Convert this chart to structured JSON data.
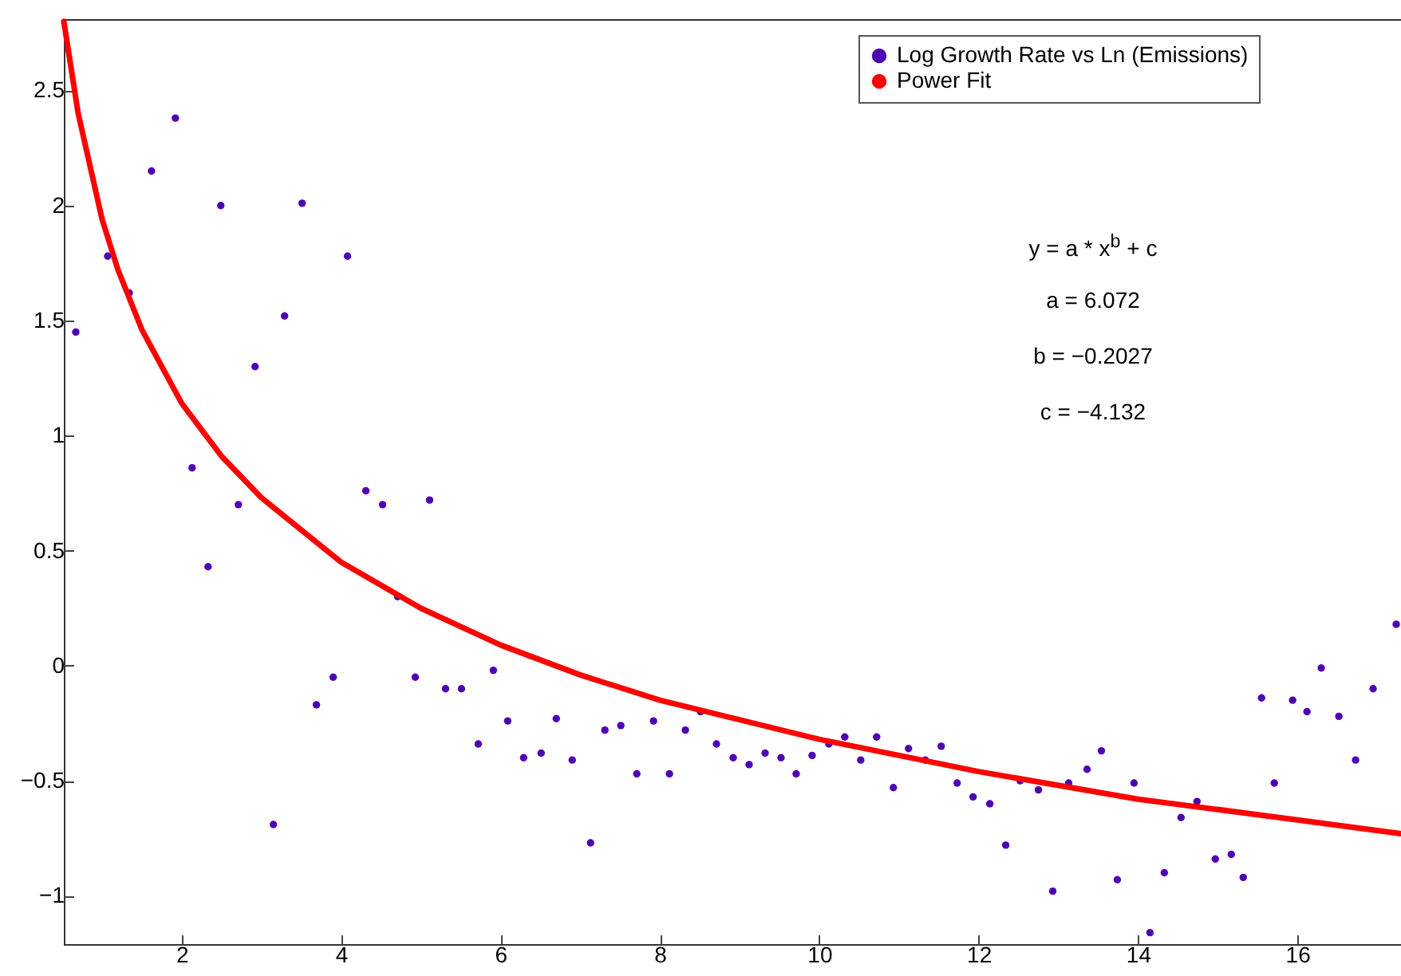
{
  "chart_data": {
    "type": "scatter",
    "xlim": [
      0.52,
      17.3
    ],
    "ylim": [
      -1.21,
      2.81
    ],
    "xticks": [
      2,
      4,
      6,
      8,
      10,
      12,
      14,
      16
    ],
    "yticks": [
      -1,
      -0.5,
      0,
      0.5,
      1,
      1.5,
      2,
      2.5
    ],
    "grid": false,
    "legend": "top right",
    "annotations": [
      "y = a * x$^{b}$ + c",
      "a = 6.072",
      "b = −0.2027",
      "c = −4.132"
    ],
    "series": [
      {
        "name": "Log Growth Rate vs Ln (Emissions)",
        "color": "#5000b4",
        "marker": "circle",
        "x": [
          0.67,
          1.07,
          1.34,
          1.62,
          1.92,
          2.13,
          2.33,
          2.49,
          2.71,
          2.92,
          3.15,
          3.29,
          3.51,
          3.69,
          3.9,
          4.08,
          4.31,
          4.52,
          4.71,
          4.93,
          5.11,
          5.31,
          5.51,
          5.72,
          5.91,
          6.09,
          6.29,
          6.51,
          6.7,
          6.9,
          7.13,
          7.31,
          7.51,
          7.71,
          7.92,
          8.12,
          8.32,
          8.51,
          8.71,
          8.92,
          9.12,
          9.32,
          9.52,
          9.71,
          9.91,
          10.12,
          10.32,
          10.52,
          10.72,
          10.93,
          11.12,
          11.33,
          11.53,
          11.73,
          11.93,
          12.14,
          12.34,
          12.52,
          12.75,
          12.93,
          13.13,
          13.36,
          13.54,
          13.74,
          13.95,
          14.15,
          14.33,
          14.54,
          14.74,
          14.97,
          15.17,
          15.32,
          15.55,
          15.71,
          15.94,
          16.12,
          16.3,
          16.52,
          16.73,
          16.95,
          17.24
        ],
        "values": [
          1.45,
          1.78,
          1.62,
          2.15,
          2.38,
          0.86,
          0.43,
          2.0,
          0.7,
          1.3,
          -0.69,
          1.52,
          2.01,
          -0.17,
          -0.05,
          1.78,
          0.76,
          0.7,
          0.3,
          -0.05,
          0.72,
          -0.1,
          -0.1,
          -0.34,
          -0.02,
          -0.24,
          -0.4,
          -0.38,
          -0.23,
          -0.41,
          -0.77,
          -0.28,
          -0.26,
          -0.47,
          -0.24,
          -0.47,
          -0.28,
          -0.2,
          -0.34,
          -0.4,
          -0.43,
          -0.38,
          -0.4,
          -0.47,
          -0.39,
          -0.34,
          -0.31,
          -0.41,
          -0.31,
          -0.53,
          -0.36,
          -0.41,
          -0.35,
          -0.51,
          -0.57,
          -0.6,
          -0.78,
          -0.5,
          -0.54,
          -0.98,
          -0.51,
          -0.45,
          -0.37,
          -0.93,
          -0.51,
          -1.16,
          -0.9,
          -0.66,
          -0.59,
          -0.84,
          -0.82,
          -0.92,
          -0.14,
          -0.51,
          -0.15,
          -0.2,
          -0.01,
          -0.22,
          -0.41,
          -0.1,
          0.18
        ]
      },
      {
        "name": "Power Fit",
        "color": "#ff0000",
        "type": "line",
        "marker": "none",
        "x": [
          0.52,
          0.7,
          1,
          1.2,
          1.5,
          2,
          2.5,
          3,
          4,
          5,
          6,
          7,
          8,
          10,
          12,
          14,
          16,
          17.3
        ],
        "values": [
          2.8,
          2.4,
          1.94,
          1.72,
          1.46,
          1.14,
          0.91,
          0.73,
          0.45,
          0.25,
          0.09,
          -0.04,
          -0.15,
          -0.32,
          -0.46,
          -0.58,
          -0.67,
          -0.73
        ]
      }
    ]
  }
}
